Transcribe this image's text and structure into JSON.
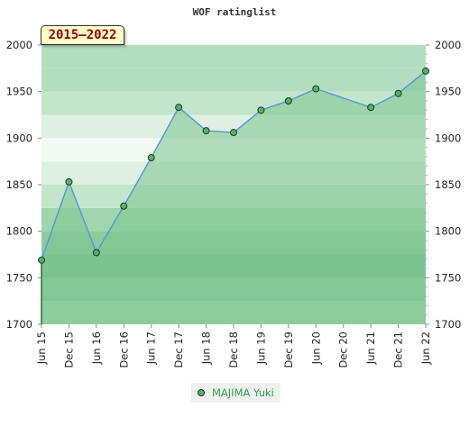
{
  "chart_data": {
    "type": "area",
    "title": "WOF ratinglist",
    "period_label": "2015–2022",
    "categories": [
      "Jun 15",
      "Dec 15",
      "Jun 16",
      "Dec 16",
      "Jun 17",
      "Dec 17",
      "Jun 18",
      "Dec 18",
      "Jun 19",
      "Dec 19",
      "Jun 20",
      "Dec 20",
      "Jun 21",
      "Dec 21",
      "Jun 22"
    ],
    "series": [
      {
        "name": "MAJIMA Yuki",
        "points": [
          {
            "x": "Jun 15",
            "y": 1769
          },
          {
            "x": "Dec 15",
            "y": 1853
          },
          {
            "x": "Jun 16",
            "y": 1777
          },
          {
            "x": "Dec 16",
            "y": 1827
          },
          {
            "x": "Jun 17",
            "y": 1879
          },
          {
            "x": "Dec 17",
            "y": 1933
          },
          {
            "x": "Jun 18",
            "y": 1908
          },
          {
            "x": "Dec 18",
            "y": 1906
          },
          {
            "x": "Jun 19",
            "y": 1930
          },
          {
            "x": "Dec 19",
            "y": 1940
          },
          {
            "x": "Jun 20",
            "y": 1953
          },
          {
            "x": "Jun 21",
            "y": 1933
          },
          {
            "x": "Dec 21",
            "y": 1948
          },
          {
            "x": "Jun 22",
            "y": 1972
          }
        ]
      }
    ],
    "yticks": [
      1700,
      1750,
      1800,
      1850,
      1900,
      1950,
      2000
    ],
    "ylim": [
      1700,
      2000
    ],
    "y_axis_both_sides": true,
    "legend_position": "bottom-center",
    "colors": {
      "line": "#5b9bd5",
      "marker": "#55b06a",
      "fill": "#7cc48f",
      "band_light": "#f3faf4",
      "band_dark": "#7cc293"
    }
  }
}
